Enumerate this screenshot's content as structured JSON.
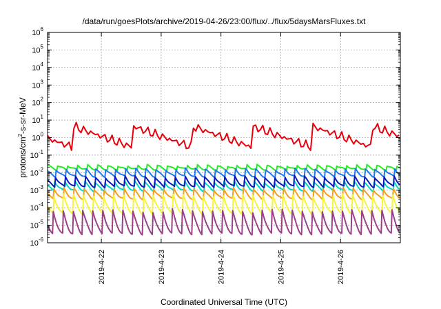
{
  "chart_data": {
    "type": "line",
    "title": "/data/run/goesPlots/archive/2019-04-26/23:00/flux/../flux/5daysMarsFluxes.txt",
    "xlabel": "Coordinated Universal Time (UTC)",
    "ylabel": {
      "prefix": "protons/cm",
      "superscript": "2",
      "suffix": "-s-sr-MeV"
    },
    "yscale": "log",
    "ylim_exponent": [
      -6,
      6
    ],
    "yticks": [
      {
        "base": "10",
        "exp": "6"
      },
      {
        "base": "10",
        "exp": "5"
      },
      {
        "base": "10",
        "exp": "4"
      },
      {
        "base": "10",
        "exp": "3"
      },
      {
        "base": "10",
        "exp": "2"
      },
      {
        "base": "10",
        "exp": "1"
      },
      {
        "base": "10",
        "exp": "0"
      },
      {
        "base": "10",
        "exp": "-1"
      },
      {
        "base": "10",
        "exp": "-2"
      },
      {
        "base": "10",
        "exp": "-3"
      },
      {
        "base": "10",
        "exp": "-4"
      },
      {
        "base": "10",
        "exp": "-5"
      },
      {
        "base": "10",
        "exp": "-6"
      }
    ],
    "xlim_days": [
      21.1,
      27.0
    ],
    "xticks": [
      {
        "label": "2019-4-22",
        "day": 22
      },
      {
        "label": "2019-4-23",
        "day": 23
      },
      {
        "label": "2019-4-24",
        "day": 24
      },
      {
        "label": "2019-4-25",
        "day": 25
      },
      {
        "label": "2019-4-26",
        "day": 26
      }
    ],
    "grid": true,
    "series": [
      {
        "color": "#e8000b",
        "shape": "ramp",
        "base": 0.05,
        "amp": 1.2,
        "period": 1.0,
        "phase": 0.6
      },
      {
        "color": "#22ee22",
        "shape": "saw",
        "base": -1.7,
        "amp": 0.25,
        "period": 0.1667,
        "phase": 0.0
      },
      {
        "color": "#2277ee",
        "shape": "saw",
        "base": -2.0,
        "amp": 0.45,
        "period": 0.1667,
        "phase": 0.03
      },
      {
        "color": "#00d8c0",
        "shape": "saw",
        "base": -2.75,
        "amp": 0.55,
        "period": 0.1667,
        "phase": 0.05
      },
      {
        "color": "#0a1ab8",
        "shape": "saw",
        "base": -2.5,
        "amp": 0.6,
        "period": 0.1667,
        "phase": 0.04
      },
      {
        "color": "#f0a020",
        "shape": "saw",
        "base": -3.2,
        "amp": 0.6,
        "period": 0.1667,
        "phase": 0.06
      },
      {
        "color": "#f5f53a",
        "shape": "saw",
        "base": -3.8,
        "amp": 1.1,
        "period": 0.1667,
        "phase": 0.07
      },
      {
        "color": "#9b3f86",
        "shape": "saw",
        "base": -4.8,
        "amp": 1.4,
        "period": 0.1667,
        "phase": 0.08
      }
    ]
  }
}
